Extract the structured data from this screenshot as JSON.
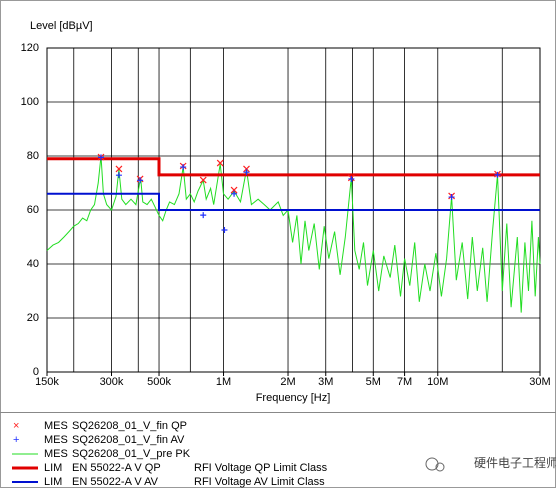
{
  "chart_data": {
    "type": "emi",
    "ylabel": "Level [dBµV]",
    "xlabel": "Frequency [Hz]",
    "xscale": "log",
    "xlim": [
      150000,
      30000000
    ],
    "ylim": [
      0,
      120
    ],
    "yticks": [
      0,
      20,
      40,
      60,
      80,
      100,
      120
    ],
    "xticks": [
      {
        "value": 150000,
        "label": "150k"
      },
      {
        "value": 300000,
        "label": "300k"
      },
      {
        "value": 500000,
        "label": "500k"
      },
      {
        "value": 1000000,
        "label": "1M"
      },
      {
        "value": 2000000,
        "label": "2M"
      },
      {
        "value": 3000000,
        "label": "3M"
      },
      {
        "value": 5000000,
        "label": "5M"
      },
      {
        "value": 7000000,
        "label": "7M"
      },
      {
        "value": 10000000,
        "label": "10M"
      },
      {
        "value": 30000000,
        "label": "30M"
      }
    ],
    "xminor": [
      200000,
      400000,
      700000,
      4000000,
      20000000
    ],
    "grid": true,
    "series": [
      {
        "kind": "MES",
        "name": "SQ26208_01_V_fin QP",
        "style": "x",
        "color": "#ff2020",
        "x": [
          268000,
          325000,
          408000,
          648000,
          804000,
          965000,
          1120000,
          1280000,
          3950000,
          11600000,
          19000000
        ],
        "values": [
          79.6,
          75.2,
          71.5,
          76.3,
          71.1,
          77.4,
          67.4,
          75.2,
          71.9,
          65.2,
          73.3
        ]
      },
      {
        "kind": "MES",
        "name": "SQ26208_01_V_fin AV",
        "style": "plus",
        "color": "#2030ff",
        "x": [
          268000,
          325000,
          408000,
          648000,
          804000,
          1010000,
          1120000,
          1280000,
          3950000,
          11600000,
          19000000
        ],
        "values": [
          79.5,
          72.9,
          71,
          75.9,
          58.1,
          52.6,
          66,
          74,
          71.5,
          64.8,
          73
        ]
      },
      {
        "kind": "MES",
        "name": "SQ26208_01_V_pre PK",
        "style": "line",
        "color": "#22dd22",
        "width": 1,
        "x": [
          150000,
          160000,
          170000,
          180000,
          190000,
          200000,
          210000,
          220000,
          230000,
          240000,
          250000,
          260000,
          268000,
          275000,
          285000,
          300000,
          315000,
          325000,
          335000,
          350000,
          370000,
          390000,
          410000,
          420000,
          440000,
          460000,
          480000,
          500000,
          520000,
          540000,
          560000,
          590000,
          620000,
          648000,
          670000,
          700000,
          730000,
          760000,
          804000,
          830000,
          870000,
          900000,
          965000,
          1000000,
          1050000,
          1120000,
          1200000,
          1280000,
          1350000,
          1450000,
          1550000,
          1650000,
          1800000,
          1900000,
          2000000,
          2100000,
          2200000,
          2300000,
          2400000,
          2500000,
          2650000,
          2800000,
          2950000,
          3100000,
          3300000,
          3500000,
          3700000,
          3950000,
          4100000,
          4300000,
          4500000,
          4700000,
          5000000,
          5300000,
          5600000,
          6000000,
          6300000,
          6700000,
          7000000,
          7400000,
          7800000,
          8200000,
          8700000,
          9200000,
          9800000,
          10400000,
          11000000,
          11600000,
          12200000,
          13000000,
          13800000,
          14500000,
          15300000,
          16200000,
          17000000,
          18000000,
          19000000,
          20000000,
          21000000,
          22000000,
          23500000,
          24500000,
          25500000,
          26500000,
          27500000,
          28500000,
          29500000,
          30000000
        ],
        "values": [
          45,
          47,
          48,
          50,
          52,
          54,
          55,
          57,
          56,
          60,
          62,
          70,
          80,
          66,
          62,
          60,
          65,
          75,
          64,
          62,
          64,
          62,
          72,
          63,
          62,
          64,
          61,
          58,
          56,
          60,
          63,
          62,
          66,
          76,
          64,
          66,
          63,
          67,
          71,
          64,
          68,
          62,
          77,
          66,
          64,
          67,
          63,
          75,
          62,
          64,
          62,
          60,
          63,
          58,
          60,
          48,
          58,
          40,
          56,
          45,
          55,
          38,
          54,
          42,
          52,
          36,
          50,
          72,
          45,
          38,
          48,
          32,
          45,
          30,
          43,
          35,
          47,
          28,
          42,
          32,
          48,
          26,
          40,
          30,
          44,
          28,
          42,
          65,
          34,
          48,
          27,
          50,
          30,
          46,
          26,
          52,
          73,
          30,
          55,
          24,
          50,
          22,
          48,
          30,
          56,
          28,
          50,
          40
        ]
      },
      {
        "kind": "LIM",
        "name": "EN 55022-A V QP",
        "description": "RFI Voltage QP Limit Class",
        "style": "line",
        "color": "#e00000",
        "width": 3,
        "x": [
          150000,
          500000,
          500000,
          30000000
        ],
        "values": [
          79,
          79,
          73,
          73
        ]
      },
      {
        "kind": "LIM",
        "name": "EN 55022-A V AV",
        "description": "RFI Voltage AV Limit Class",
        "style": "line",
        "color": "#0010d0",
        "width": 2,
        "x": [
          150000,
          500000,
          500000,
          30000000
        ],
        "values": [
          66,
          66,
          60,
          60
        ]
      }
    ],
    "watermark": "硬件电子工程师"
  }
}
